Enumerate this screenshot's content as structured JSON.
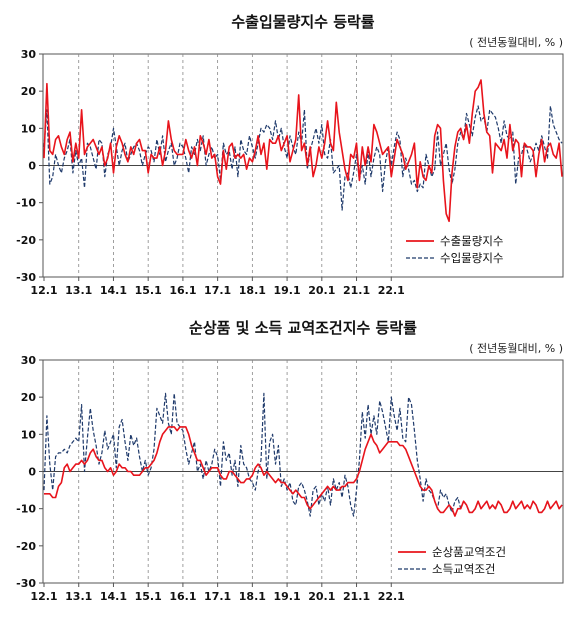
{
  "chart_data": [
    {
      "type": "line",
      "title": "수출입물량지수 등락률",
      "unit_note": "( 전년동월대비, % )",
      "ylim": [
        -30,
        30
      ],
      "yticks": [
        "30",
        "20",
        "10",
        "0",
        "-10",
        "-20",
        "-30"
      ],
      "xticks": [
        "12.1",
        "13.1",
        "14.1",
        "15.1",
        "16.1",
        "17.1",
        "18.1",
        "19.1",
        "20.1",
        "21.1",
        "22.1"
      ],
      "x_start": "2012-01",
      "x_end": "2022-12",
      "grid": "vertical dashed at January",
      "legend_position": "bottom-right",
      "series": [
        {
          "name": "수출물량지수",
          "style": "solid",
          "color": "#e8141c",
          "values": [
            2,
            22,
            4,
            3,
            7,
            8,
            5,
            3,
            7,
            9,
            1,
            6,
            2,
            15,
            3,
            5,
            6,
            7,
            5,
            3,
            5,
            0,
            2,
            6,
            -2,
            5,
            8,
            6,
            3,
            1,
            5,
            3,
            6,
            7,
            4,
            4,
            -2,
            3,
            2,
            2,
            5,
            0,
            4,
            12,
            7,
            4,
            3,
            3,
            3,
            7,
            4,
            2,
            5,
            0,
            8,
            6,
            3,
            7,
            2,
            3,
            -3,
            -5,
            4,
            -1,
            5,
            6,
            2,
            3,
            2,
            3,
            -1,
            2,
            1,
            4,
            8,
            3,
            6,
            -1,
            7,
            6,
            6,
            8,
            4,
            6,
            8,
            1,
            4,
            7,
            19,
            4,
            6,
            0,
            5,
            -3,
            0,
            5,
            2,
            6,
            12,
            6,
            4,
            17,
            9,
            4,
            -1,
            -4,
            3,
            2,
            6,
            -4,
            5,
            0,
            5,
            1,
            11,
            9,
            6,
            3,
            4,
            5,
            -3,
            2,
            7,
            5,
            3,
            -1,
            1,
            3,
            6,
            -6,
            1,
            -3,
            -4,
            0,
            -2,
            8,
            11,
            10,
            -4,
            -13,
            -15,
            -2,
            5,
            9,
            10,
            7,
            11,
            6,
            14,
            20,
            21,
            23,
            14,
            9,
            8,
            -2,
            6,
            5,
            4,
            7,
            2,
            11,
            4,
            7,
            6,
            -3,
            6,
            5,
            5,
            4,
            -3,
            3,
            7,
            1,
            5,
            6,
            3,
            2,
            6,
            -3
          ]
        },
        {
          "name": "수입물량지수",
          "style": "dashed",
          "color": "#1f3a6b",
          "values": [
            5,
            15,
            -5,
            -3,
            3,
            0,
            -2,
            2,
            4,
            7,
            -2,
            4,
            0,
            2,
            -6,
            6,
            5,
            2,
            -1,
            7,
            6,
            -3,
            3,
            5,
            10,
            5,
            0,
            4,
            6,
            1,
            3,
            5,
            6,
            4,
            0,
            3,
            5,
            4,
            1,
            7,
            3,
            8,
            1,
            4,
            6,
            0,
            2,
            6,
            5,
            2,
            -2,
            5,
            3,
            7,
            4,
            8,
            0,
            3,
            5,
            2,
            3,
            -4,
            6,
            3,
            4,
            -1,
            5,
            -3,
            7,
            4,
            3,
            8,
            5,
            2,
            6,
            10,
            9,
            11,
            10,
            7,
            12,
            7,
            10,
            5,
            2,
            8,
            5,
            3,
            9,
            6,
            15,
            -1,
            4,
            7,
            10,
            6,
            11,
            3,
            2,
            7,
            -2,
            -1,
            0,
            -12,
            -3,
            -2,
            -6,
            -2,
            3,
            -4,
            0,
            -5,
            4,
            -3,
            2,
            5,
            3,
            -7,
            1,
            5,
            0,
            5,
            9,
            7,
            -3,
            2,
            -1,
            -5,
            -4,
            -7,
            -5,
            -6,
            3,
            0,
            -3,
            -1,
            9,
            0,
            3,
            6,
            -1,
            -5,
            -1,
            6,
            9,
            7,
            14,
            11,
            8,
            13,
            16,
            12,
            13,
            9,
            15,
            14,
            13,
            10,
            6,
            12,
            8,
            7,
            9,
            -5,
            2,
            3,
            6,
            4,
            1,
            3,
            6,
            4,
            8,
            5,
            2,
            16,
            11,
            9,
            7,
            6
          ]
        }
      ]
    },
    {
      "type": "line",
      "title": "순상품 및 소득 교역조건지수 등락률",
      "unit_note": "( 전년동월대비, % )",
      "ylim": [
        -30,
        30
      ],
      "yticks": [
        "30",
        "20",
        "10",
        "0",
        "-10",
        "-20",
        "-30"
      ],
      "xticks": [
        "12.1",
        "13.1",
        "14.1",
        "15.1",
        "16.1",
        "17.1",
        "18.1",
        "19.1",
        "20.1",
        "21.1",
        "22.1"
      ],
      "x_start": "2012-01",
      "x_end": "2022-12",
      "grid": "vertical dashed at January",
      "legend_position": "bottom-right",
      "series": [
        {
          "name": "순상품교역조건",
          "style": "solid",
          "color": "#e8141c",
          "values": [
            -6,
            -6,
            -6,
            -7,
            -7,
            -4,
            -3,
            1,
            2,
            0,
            1,
            2,
            2,
            3,
            2,
            3,
            5,
            6,
            4,
            3,
            3,
            1,
            0,
            1,
            -1,
            0,
            2,
            1,
            1,
            0,
            0,
            -1,
            -1,
            -1,
            0,
            1,
            1,
            2,
            3,
            5,
            8,
            10,
            11,
            12,
            12,
            12,
            11,
            12,
            12,
            12,
            10,
            7,
            5,
            3,
            3,
            1,
            -1,
            0,
            1,
            1,
            1,
            -1,
            -2,
            -2,
            0,
            0,
            -1,
            -2,
            -3,
            -3,
            -2,
            -2,
            -1,
            1,
            2,
            1,
            -1,
            0,
            -1,
            -2,
            -3,
            -2,
            -3,
            -3,
            -4,
            -5,
            -6,
            -5,
            -6,
            -7,
            -7,
            -9,
            -10,
            -9,
            -8,
            -7,
            -6,
            -5,
            -4,
            -5,
            -4,
            -5,
            -5,
            -4,
            -4,
            -3,
            -3,
            -3,
            -2,
            0,
            3,
            6,
            8,
            10,
            8,
            7,
            5,
            6,
            7,
            8,
            8,
            8,
            8,
            7,
            7,
            6,
            4,
            2,
            0,
            -2,
            -4,
            -5,
            -5,
            -4,
            -5,
            -8,
            -10,
            -11,
            -11,
            -10,
            -9,
            -10,
            -12,
            -10,
            -10,
            -8,
            -9,
            -11,
            -11,
            -10,
            -8,
            -10,
            -9,
            -8,
            -10,
            -9,
            -10,
            -8,
            -9,
            -11,
            -11,
            -10,
            -8,
            -10,
            -9,
            -8,
            -10,
            -9,
            -10,
            -8,
            -9,
            -11,
            -11,
            -10,
            -8,
            -10,
            -9,
            -8,
            -10,
            -9
          ]
        },
        {
          "name": "소득교역조건",
          "style": "dashed",
          "color": "#1f3a6b",
          "values": [
            -5,
            15,
            2,
            -5,
            4,
            5,
            5,
            6,
            5,
            7,
            8,
            9,
            8,
            18,
            0,
            9,
            17,
            11,
            7,
            2,
            5,
            11,
            6,
            8,
            10,
            1,
            12,
            14,
            8,
            3,
            10,
            7,
            9,
            4,
            0,
            3,
            -1,
            1,
            6,
            17,
            15,
            13,
            21,
            13,
            10,
            21,
            13,
            12,
            11,
            6,
            2,
            5,
            8,
            0,
            2,
            -2,
            3,
            0,
            2,
            6,
            4,
            -4,
            8,
            3,
            5,
            -1,
            3,
            -4,
            7,
            2,
            1,
            -2,
            -3,
            -5,
            0,
            3,
            21,
            -2,
            8,
            10,
            2,
            7,
            -4,
            -2,
            -5,
            -3,
            -8,
            -9,
            -4,
            -3,
            -5,
            -8,
            -12,
            -5,
            -4,
            -9,
            -6,
            -8,
            -4,
            -9,
            -2,
            -5,
            -3,
            -7,
            -1,
            -4,
            -9,
            -12,
            -5,
            3,
            16,
            9,
            18,
            10,
            15,
            10,
            19,
            16,
            12,
            8,
            20,
            15,
            11,
            17,
            9,
            8,
            20,
            18,
            11,
            3,
            -2,
            -8,
            -2,
            -5,
            -6,
            -8,
            -10,
            -5,
            -7,
            -6,
            -9,
            -11,
            -8,
            -7,
            -10,
            -8,
            -9,
            -11,
            -11,
            -10,
            -8,
            -10,
            -9,
            -8,
            -10,
            -9,
            -10,
            -8,
            -9,
            -11,
            -11,
            -10,
            -8,
            -10,
            -9,
            -8,
            -10,
            -9,
            -10,
            -8,
            -9,
            -11,
            -11,
            -10,
            -8,
            -10,
            -9,
            -8,
            -10,
            -9
          ]
        }
      ]
    }
  ]
}
